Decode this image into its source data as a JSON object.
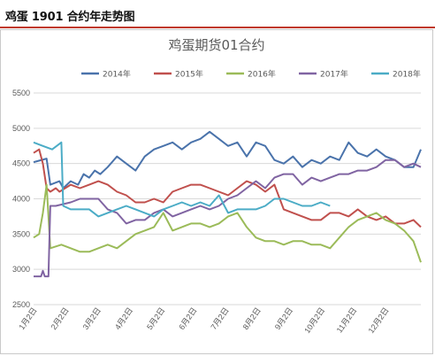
{
  "header": {
    "title": "鸡蛋 1901 合约年走势图"
  },
  "colors": {
    "accent_rule": "#c0392b"
  },
  "chart_data": {
    "type": "line",
    "title": "鸡蛋期货01合约",
    "xlabel": "",
    "ylabel": "",
    "ylim": [
      2500,
      5500
    ],
    "yticks": [
      2500,
      3000,
      3500,
      4000,
      4500,
      5000,
      5500
    ],
    "grid": true,
    "legend": "top",
    "xticks": [
      "1月2日",
      "2月2日",
      "3月2日",
      "4月2日",
      "5月2日",
      "6月2日",
      "7月2日",
      "8月2日",
      "9月2日",
      "10月2日",
      "11月2日",
      "12月2日"
    ],
    "series": [
      {
        "name": "2014年",
        "color": "#4a73ab",
        "values": [
          [
            0,
            4520
          ],
          [
            7,
            4570
          ],
          [
            9,
            4200
          ],
          [
            14,
            4250
          ],
          [
            16,
            4150
          ],
          [
            20,
            4250
          ],
          [
            24,
            4200
          ],
          [
            27,
            4350
          ],
          [
            30,
            4300
          ],
          [
            33,
            4400
          ],
          [
            36,
            4350
          ],
          [
            40,
            4450
          ],
          [
            45,
            4600
          ],
          [
            50,
            4500
          ],
          [
            55,
            4400
          ],
          [
            60,
            4600
          ],
          [
            65,
            4700
          ],
          [
            70,
            4750
          ],
          [
            75,
            4800
          ],
          [
            80,
            4700
          ],
          [
            85,
            4800
          ],
          [
            90,
            4850
          ],
          [
            95,
            4950
          ],
          [
            100,
            4850
          ],
          [
            105,
            4750
          ],
          [
            110,
            4800
          ],
          [
            115,
            4600
          ],
          [
            120,
            4800
          ],
          [
            125,
            4750
          ],
          [
            130,
            4550
          ],
          [
            135,
            4500
          ],
          [
            140,
            4600
          ],
          [
            145,
            4450
          ],
          [
            150,
            4550
          ],
          [
            155,
            4500
          ],
          [
            160,
            4600
          ],
          [
            165,
            4550
          ],
          [
            170,
            4800
          ],
          [
            175,
            4650
          ],
          [
            180,
            4600
          ],
          [
            185,
            4700
          ],
          [
            190,
            4600
          ],
          [
            195,
            4550
          ],
          [
            200,
            4450
          ],
          [
            205,
            4450
          ],
          [
            209,
            4700
          ]
        ]
      },
      {
        "name": "2015年",
        "color": "#c0504d",
        "values": [
          [
            0,
            4650
          ],
          [
            3,
            4700
          ],
          [
            5,
            4500
          ],
          [
            7,
            4150
          ],
          [
            9,
            4100
          ],
          [
            12,
            4150
          ],
          [
            14,
            4100
          ],
          [
            20,
            4200
          ],
          [
            25,
            4150
          ],
          [
            30,
            4200
          ],
          [
            35,
            4250
          ],
          [
            40,
            4200
          ],
          [
            45,
            4100
          ],
          [
            50,
            4050
          ],
          [
            55,
            3950
          ],
          [
            60,
            3950
          ],
          [
            65,
            4000
          ],
          [
            70,
            3950
          ],
          [
            75,
            4100
          ],
          [
            80,
            4150
          ],
          [
            85,
            4200
          ],
          [
            90,
            4200
          ],
          [
            95,
            4150
          ],
          [
            100,
            4100
          ],
          [
            105,
            4050
          ],
          [
            110,
            4150
          ],
          [
            115,
            4250
          ],
          [
            120,
            4200
          ],
          [
            125,
            4100
          ],
          [
            130,
            4200
          ],
          [
            135,
            3850
          ],
          [
            140,
            3800
          ],
          [
            145,
            3750
          ],
          [
            150,
            3700
          ],
          [
            155,
            3700
          ],
          [
            160,
            3800
          ],
          [
            165,
            3800
          ],
          [
            170,
            3750
          ],
          [
            175,
            3850
          ],
          [
            180,
            3750
          ],
          [
            185,
            3700
          ],
          [
            190,
            3750
          ],
          [
            195,
            3650
          ],
          [
            200,
            3650
          ],
          [
            205,
            3700
          ],
          [
            209,
            3600
          ]
        ]
      },
      {
        "name": "2016年",
        "color": "#9bbb59",
        "values": [
          [
            0,
            3450
          ],
          [
            3,
            3500
          ],
          [
            5,
            3800
          ],
          [
            7,
            4200
          ],
          [
            9,
            3300
          ],
          [
            15,
            3350
          ],
          [
            20,
            3300
          ],
          [
            25,
            3250
          ],
          [
            30,
            3250
          ],
          [
            35,
            3300
          ],
          [
            40,
            3350
          ],
          [
            45,
            3300
          ],
          [
            50,
            3400
          ],
          [
            55,
            3500
          ],
          [
            60,
            3550
          ],
          [
            65,
            3600
          ],
          [
            70,
            3800
          ],
          [
            75,
            3550
          ],
          [
            80,
            3600
          ],
          [
            85,
            3650
          ],
          [
            90,
            3650
          ],
          [
            95,
            3600
          ],
          [
            100,
            3650
          ],
          [
            105,
            3750
          ],
          [
            110,
            3800
          ],
          [
            115,
            3600
          ],
          [
            120,
            3450
          ],
          [
            125,
            3400
          ],
          [
            130,
            3400
          ],
          [
            135,
            3350
          ],
          [
            140,
            3400
          ],
          [
            145,
            3400
          ],
          [
            150,
            3350
          ],
          [
            155,
            3350
          ],
          [
            160,
            3300
          ],
          [
            165,
            3450
          ],
          [
            170,
            3600
          ],
          [
            175,
            3700
          ],
          [
            180,
            3750
          ],
          [
            185,
            3800
          ],
          [
            190,
            3700
          ],
          [
            195,
            3650
          ],
          [
            200,
            3550
          ],
          [
            205,
            3400
          ],
          [
            209,
            3100
          ]
        ]
      },
      {
        "name": "2017年",
        "color": "#8064a2",
        "values": [
          [
            0,
            2900
          ],
          [
            4,
            2900
          ],
          [
            5,
            2980
          ],
          [
            6,
            2900
          ],
          [
            8,
            2900
          ],
          [
            9,
            3900
          ],
          [
            12,
            3900
          ],
          [
            20,
            3950
          ],
          [
            25,
            4000
          ],
          [
            30,
            4000
          ],
          [
            35,
            4000
          ],
          [
            40,
            3850
          ],
          [
            45,
            3800
          ],
          [
            50,
            3650
          ],
          [
            55,
            3700
          ],
          [
            60,
            3700
          ],
          [
            65,
            3800
          ],
          [
            70,
            3850
          ],
          [
            75,
            3750
          ],
          [
            80,
            3800
          ],
          [
            85,
            3850
          ],
          [
            90,
            3900
          ],
          [
            95,
            3850
          ],
          [
            100,
            3900
          ],
          [
            105,
            4000
          ],
          [
            110,
            4050
          ],
          [
            115,
            4150
          ],
          [
            120,
            4250
          ],
          [
            125,
            4150
          ],
          [
            130,
            4300
          ],
          [
            135,
            4350
          ],
          [
            140,
            4350
          ],
          [
            145,
            4200
          ],
          [
            150,
            4300
          ],
          [
            155,
            4250
          ],
          [
            160,
            4300
          ],
          [
            165,
            4350
          ],
          [
            170,
            4350
          ],
          [
            175,
            4400
          ],
          [
            180,
            4400
          ],
          [
            185,
            4450
          ],
          [
            190,
            4550
          ],
          [
            195,
            4550
          ],
          [
            200,
            4450
          ],
          [
            205,
            4500
          ],
          [
            209,
            4450
          ]
        ]
      },
      {
        "name": "2018年",
        "color": "#4bacc6",
        "values": [
          [
            0,
            4800
          ],
          [
            5,
            4750
          ],
          [
            10,
            4700
          ],
          [
            15,
            4800
          ],
          [
            16,
            3900
          ],
          [
            20,
            3850
          ],
          [
            25,
            3850
          ],
          [
            30,
            3850
          ],
          [
            35,
            3750
          ],
          [
            40,
            3800
          ],
          [
            45,
            3850
          ],
          [
            50,
            3900
          ],
          [
            55,
            3850
          ],
          [
            60,
            3800
          ],
          [
            65,
            3750
          ],
          [
            70,
            3850
          ],
          [
            75,
            3900
          ],
          [
            80,
            3950
          ],
          [
            85,
            3900
          ],
          [
            90,
            3950
          ],
          [
            95,
            3900
          ],
          [
            100,
            4050
          ],
          [
            105,
            3800
          ],
          [
            110,
            3850
          ],
          [
            115,
            3850
          ],
          [
            120,
            3850
          ],
          [
            125,
            3900
          ],
          [
            130,
            4000
          ],
          [
            135,
            4000
          ],
          [
            140,
            3950
          ],
          [
            145,
            3900
          ],
          [
            150,
            3900
          ],
          [
            155,
            3950
          ],
          [
            160,
            3900
          ]
        ]
      }
    ]
  }
}
